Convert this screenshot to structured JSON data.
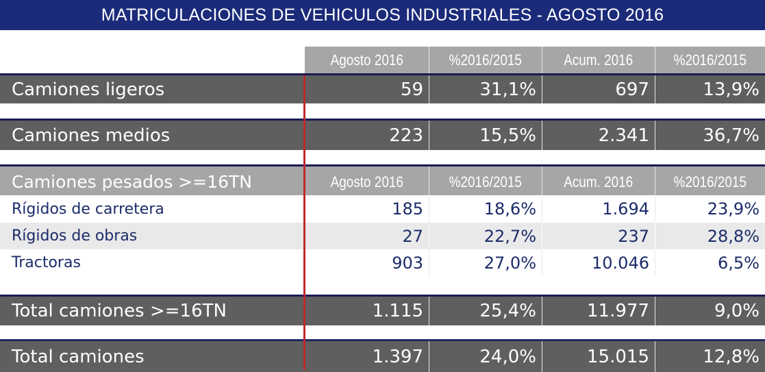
{
  "title": "MATRICULACIONES DE VEHICULOS INDUSTRIALES - AGOSTO 2016",
  "columns": [
    "Agosto 2016",
    "%2016/2015",
    "Acum. 2016",
    "%2016/2015"
  ],
  "rows": {
    "ligeros": {
      "label": "Camiones ligeros",
      "values": [
        "59",
        "31,1%",
        "697",
        "13,9%"
      ]
    },
    "medios": {
      "label": "Camiones medios",
      "values": [
        "223",
        "15,5%",
        "2.341",
        "36,7%"
      ]
    },
    "pesados_header": {
      "label": "Camiones pesados >=16TN",
      "columns": [
        "Agosto 2016",
        "%2016/2015",
        "Acum. 2016",
        "%2016/2015"
      ]
    },
    "rigidos_carretera": {
      "label": "Rígidos de carretera",
      "values": [
        "185",
        "18,6%",
        "1.694",
        "23,9%"
      ]
    },
    "rigidos_obras": {
      "label": "Rígidos de obras",
      "values": [
        "27",
        "22,7%",
        "237",
        "28,8%"
      ]
    },
    "tractoras": {
      "label": "Tractoras",
      "values": [
        "903",
        "27,0%",
        "10.046",
        "6,5%"
      ]
    },
    "total_16tn": {
      "label": "Total camiones >=16TN",
      "values": [
        "1.115",
        "25,4%",
        "11.977",
        "9,0%"
      ]
    },
    "total": {
      "label": "Total camiones",
      "values": [
        "1.397",
        "24,0%",
        "15.015",
        "12,8%"
      ]
    }
  },
  "colors": {
    "title_bg": "#1b2b7a",
    "header_bg": "#a6a6a6",
    "dark_row_bg": "#5f5f5f",
    "accent_line": "#c0272d",
    "text_navy": "#1b2b6a"
  }
}
